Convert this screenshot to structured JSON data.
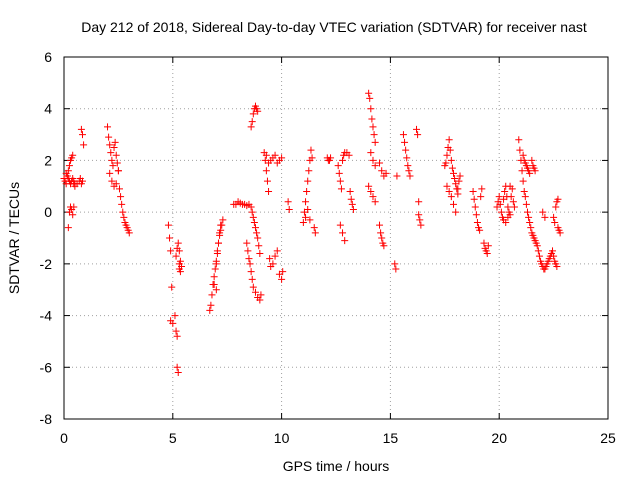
{
  "chart_data": {
    "type": "scatter",
    "title": "Day 212 of 2018, Sidereal Day-to-day VTEC variation (SDTVAR) for receiver nast",
    "xlabel": "GPS time / hours",
    "ylabel": "SDTVAR / TECUs",
    "xlim": [
      0,
      25
    ],
    "ylim": [
      -8,
      6
    ],
    "xticks": [
      0,
      5,
      10,
      15,
      20,
      25
    ],
    "yticks": [
      -8,
      -6,
      -4,
      -2,
      0,
      2,
      4,
      6
    ],
    "grid": true,
    "marker": "+",
    "color": "#ff0000",
    "series": [
      {
        "name": "SDTVAR",
        "x": [
          0.0,
          0.05,
          0.1,
          0.15,
          0.2,
          0.25,
          0.3,
          0.35,
          0.4,
          0.45,
          0.5,
          0.1,
          0.15,
          0.2,
          0.25,
          0.3,
          0.35,
          0.4,
          0.45,
          0.5,
          0.6,
          0.7,
          0.75,
          0.8,
          0.85,
          0.2,
          0.25,
          0.3,
          0.35,
          0.4,
          0.45,
          0.8,
          0.85,
          0.9,
          2.0,
          2.05,
          2.1,
          2.15,
          2.2,
          2.25,
          2.3,
          2.35,
          2.4,
          2.45,
          2.5,
          2.1,
          2.2,
          2.3,
          2.4,
          2.5,
          2.55,
          2.6,
          2.65,
          2.7,
          2.75,
          2.8,
          2.85,
          2.9,
          2.95,
          3.0,
          4.8,
          4.85,
          4.9,
          4.95,
          5.0,
          4.9,
          5.1,
          5.15,
          5.2,
          5.25,
          5.3,
          5.35,
          5.4,
          5.2,
          5.25,
          5.3,
          5.35,
          5.15,
          5.2,
          5.3,
          6.7,
          6.75,
          6.8,
          6.85,
          6.9,
          6.95,
          7.0,
          7.05,
          7.1,
          7.15,
          7.2,
          7.25,
          7.3,
          7.0,
          7.05,
          7.1,
          7.15,
          7.2,
          6.9,
          7.0,
          7.8,
          7.9,
          8.0,
          8.1,
          8.2,
          8.3,
          8.4,
          8.5,
          8.6,
          8.65,
          8.7,
          8.75,
          8.8,
          8.85,
          8.9,
          8.95,
          9.0,
          8.4,
          8.45,
          8.5,
          8.55,
          8.6,
          8.65,
          8.7,
          8.8,
          8.9,
          9.0,
          9.05,
          8.6,
          8.65,
          8.7,
          8.75,
          8.8,
          8.85,
          8.9,
          9.2,
          9.25,
          9.3,
          9.35,
          9.4,
          9.45,
          9.5,
          9.6,
          9.7,
          9.8,
          9.9,
          10.0,
          10.05,
          9.3,
          9.4,
          9.5,
          9.6,
          9.7,
          9.8,
          9.9,
          10.0,
          10.3,
          10.35,
          11.0,
          11.05,
          11.1,
          11.15,
          11.2,
          11.25,
          11.3,
          11.35,
          11.4,
          11.1,
          11.2,
          11.3,
          11.5,
          11.55,
          12.1,
          12.15,
          12.2,
          12.25,
          12.6,
          12.65,
          12.7,
          12.75,
          12.8,
          12.85,
          12.9,
          13.0,
          13.1,
          13.15,
          13.2,
          13.25,
          13.3,
          12.7,
          12.8,
          12.9,
          14.0,
          14.05,
          14.1,
          14.15,
          14.2,
          14.25,
          14.3,
          14.1,
          14.2,
          14.3,
          14.0,
          14.1,
          14.2,
          14.3,
          14.5,
          14.55,
          14.6,
          14.65,
          14.7,
          14.5,
          14.6,
          14.7,
          14.8,
          15.2,
          15.25,
          15.3,
          15.6,
          15.65,
          15.7,
          15.75,
          15.8,
          15.85,
          15.9,
          16.2,
          16.25,
          16.3,
          16.35,
          16.4,
          16.3,
          17.5,
          17.55,
          17.6,
          17.65,
          17.7,
          17.75,
          17.8,
          17.85,
          17.9,
          17.95,
          18.0,
          18.05,
          18.1,
          18.15,
          18.2,
          17.8,
          17.9,
          18.0,
          18.1,
          17.6,
          17.7,
          18.8,
          18.85,
          18.9,
          18.95,
          19.0,
          19.05,
          19.1,
          19.15,
          19.2,
          19.3,
          19.35,
          19.4,
          19.45,
          19.5,
          19.9,
          19.95,
          20.0,
          20.05,
          20.1,
          20.15,
          20.2,
          20.25,
          20.3,
          20.35,
          20.4,
          20.45,
          20.5,
          20.55,
          20.6,
          20.65,
          20.7,
          20.2,
          20.3,
          20.4,
          20.5,
          20.9,
          20.95,
          21.0,
          21.05,
          21.1,
          21.15,
          21.2,
          21.25,
          21.3,
          21.35,
          21.4,
          21.45,
          21.5,
          21.55,
          21.6,
          21.65,
          21.7,
          21.75,
          21.8,
          21.85,
          21.9,
          21.95,
          22.0,
          22.05,
          22.1,
          22.15,
          22.2,
          22.25,
          22.3,
          22.35,
          22.4,
          22.45,
          22.5,
          22.55,
          22.6,
          22.65,
          22.7,
          22.75,
          22.8,
          21.1,
          21.15,
          21.2,
          21.25,
          21.3,
          21.35,
          21.4,
          21.5,
          21.55,
          21.6,
          21.65,
          22.5,
          22.55,
          22.6,
          22.65,
          22.7,
          22.0,
          22.1
        ],
        "y": [
          1.3,
          1.2,
          1.1,
          1.4,
          1.6,
          1.8,
          2.0,
          2.1,
          2.2,
          1.1,
          1.0,
          1.5,
          1.4,
          1.3,
          1.2,
          1.1,
          1.2,
          1.3,
          1.2,
          1.1,
          1.1,
          1.2,
          1.3,
          1.1,
          1.2,
          -0.6,
          0.0,
          0.2,
          0.1,
          -0.1,
          0.2,
          3.2,
          3.0,
          2.6,
          3.3,
          2.9,
          2.6,
          2.3,
          2.0,
          1.8,
          2.5,
          2.7,
          2.2,
          1.9,
          1.6,
          1.5,
          1.2,
          1.0,
          1.1,
          1.6,
          0.9,
          0.6,
          0.3,
          0.0,
          -0.2,
          -0.4,
          -0.5,
          -0.6,
          -0.7,
          -0.8,
          -0.5,
          -1.0,
          -1.5,
          -2.9,
          -4.3,
          -4.2,
          -4.0,
          -4.6,
          -4.8,
          -1.2,
          -1.5,
          -1.9,
          -2.1,
          -6.0,
          -6.2,
          -2.0,
          -2.3,
          -1.7,
          -1.4,
          -2.2,
          -3.8,
          -3.6,
          -3.2,
          -2.8,
          -2.5,
          -2.2,
          -1.9,
          -1.5,
          -1.2,
          -0.9,
          -0.7,
          -0.5,
          -0.3,
          -2.0,
          -1.6,
          -1.2,
          -0.8,
          -0.5,
          -2.8,
          -3.0,
          0.3,
          0.3,
          0.4,
          0.35,
          0.3,
          0.3,
          0.25,
          0.3,
          0.2,
          0.0,
          -0.2,
          -0.4,
          -0.6,
          -0.8,
          -1.0,
          -1.3,
          -1.6,
          -1.2,
          -1.5,
          -1.8,
          -2.0,
          -2.3,
          -2.6,
          -2.9,
          -3.1,
          -3.3,
          -3.4,
          -3.2,
          3.3,
          3.5,
          3.8,
          4.0,
          4.1,
          4.0,
          3.9,
          2.3,
          2.0,
          1.6,
          1.2,
          0.8,
          -1.8,
          -2.1,
          -2.0,
          -1.7,
          -1.5,
          -2.4,
          -2.6,
          -2.3,
          2.2,
          1.9,
          2.0,
          2.1,
          2.2,
          1.9,
          2.0,
          2.1,
          0.4,
          0.1,
          -0.4,
          0.0,
          0.4,
          0.8,
          1.2,
          1.6,
          2.0,
          2.4,
          2.1,
          -0.2,
          0.1,
          -0.3,
          -0.6,
          -0.8,
          2.1,
          2.0,
          2.0,
          2.1,
          1.8,
          1.5,
          1.2,
          0.9,
          2.0,
          2.2,
          2.3,
          2.3,
          2.2,
          0.8,
          0.5,
          0.3,
          0.1,
          -0.5,
          -0.8,
          -1.1,
          4.6,
          4.4,
          4.0,
          3.6,
          3.3,
          3.0,
          2.7,
          2.3,
          2.0,
          1.8,
          1.0,
          0.8,
          0.6,
          0.4,
          -0.5,
          -0.8,
          -1.0,
          -1.2,
          -1.3,
          1.9,
          1.6,
          1.4,
          1.5,
          -2.0,
          -2.2,
          1.4,
          3.0,
          2.7,
          2.4,
          2.1,
          1.8,
          1.6,
          1.4,
          3.2,
          3.0,
          -0.1,
          -0.3,
          -0.5,
          0.4,
          1.8,
          1.9,
          2.2,
          2.5,
          2.8,
          2.4,
          2.0,
          1.7,
          1.5,
          1.3,
          1.1,
          0.9,
          0.7,
          1.2,
          1.4,
          0.6,
          0.3,
          0.0,
          0.9,
          1.0,
          0.8,
          0.8,
          0.5,
          0.2,
          -0.1,
          -0.4,
          -0.6,
          -0.7,
          0.6,
          0.9,
          -1.2,
          -1.4,
          -1.5,
          -1.6,
          -1.3,
          0.2,
          0.4,
          0.6,
          0.3,
          0.0,
          -0.2,
          0.5,
          0.8,
          1.0,
          0.6,
          0.2,
          0.0,
          -0.1,
          0.6,
          0.9,
          0.4,
          0.2,
          -0.3,
          -0.4,
          -0.2,
          1.0,
          2.8,
          2.4,
          2.0,
          1.6,
          1.2,
          0.8,
          0.6,
          0.3,
          0.0,
          -0.2,
          -0.4,
          -0.6,
          -0.8,
          -0.9,
          -1.0,
          -1.1,
          -1.2,
          -1.3,
          -1.5,
          -1.7,
          -1.9,
          -2.0,
          -2.1,
          -2.2,
          -2.2,
          -2.1,
          -2.0,
          -1.9,
          -1.8,
          -1.7,
          -1.6,
          -1.5,
          -1.7,
          -1.9,
          -2.0,
          -2.1,
          0.5,
          -0.7,
          -0.8,
          2.2,
          2.0,
          1.9,
          1.8,
          1.7,
          1.6,
          1.5,
          2.0,
          1.8,
          1.7,
          1.6,
          -0.2,
          -0.4,
          0.2,
          0.4,
          -0.6,
          0.0,
          -0.2
        ]
      }
    ]
  }
}
